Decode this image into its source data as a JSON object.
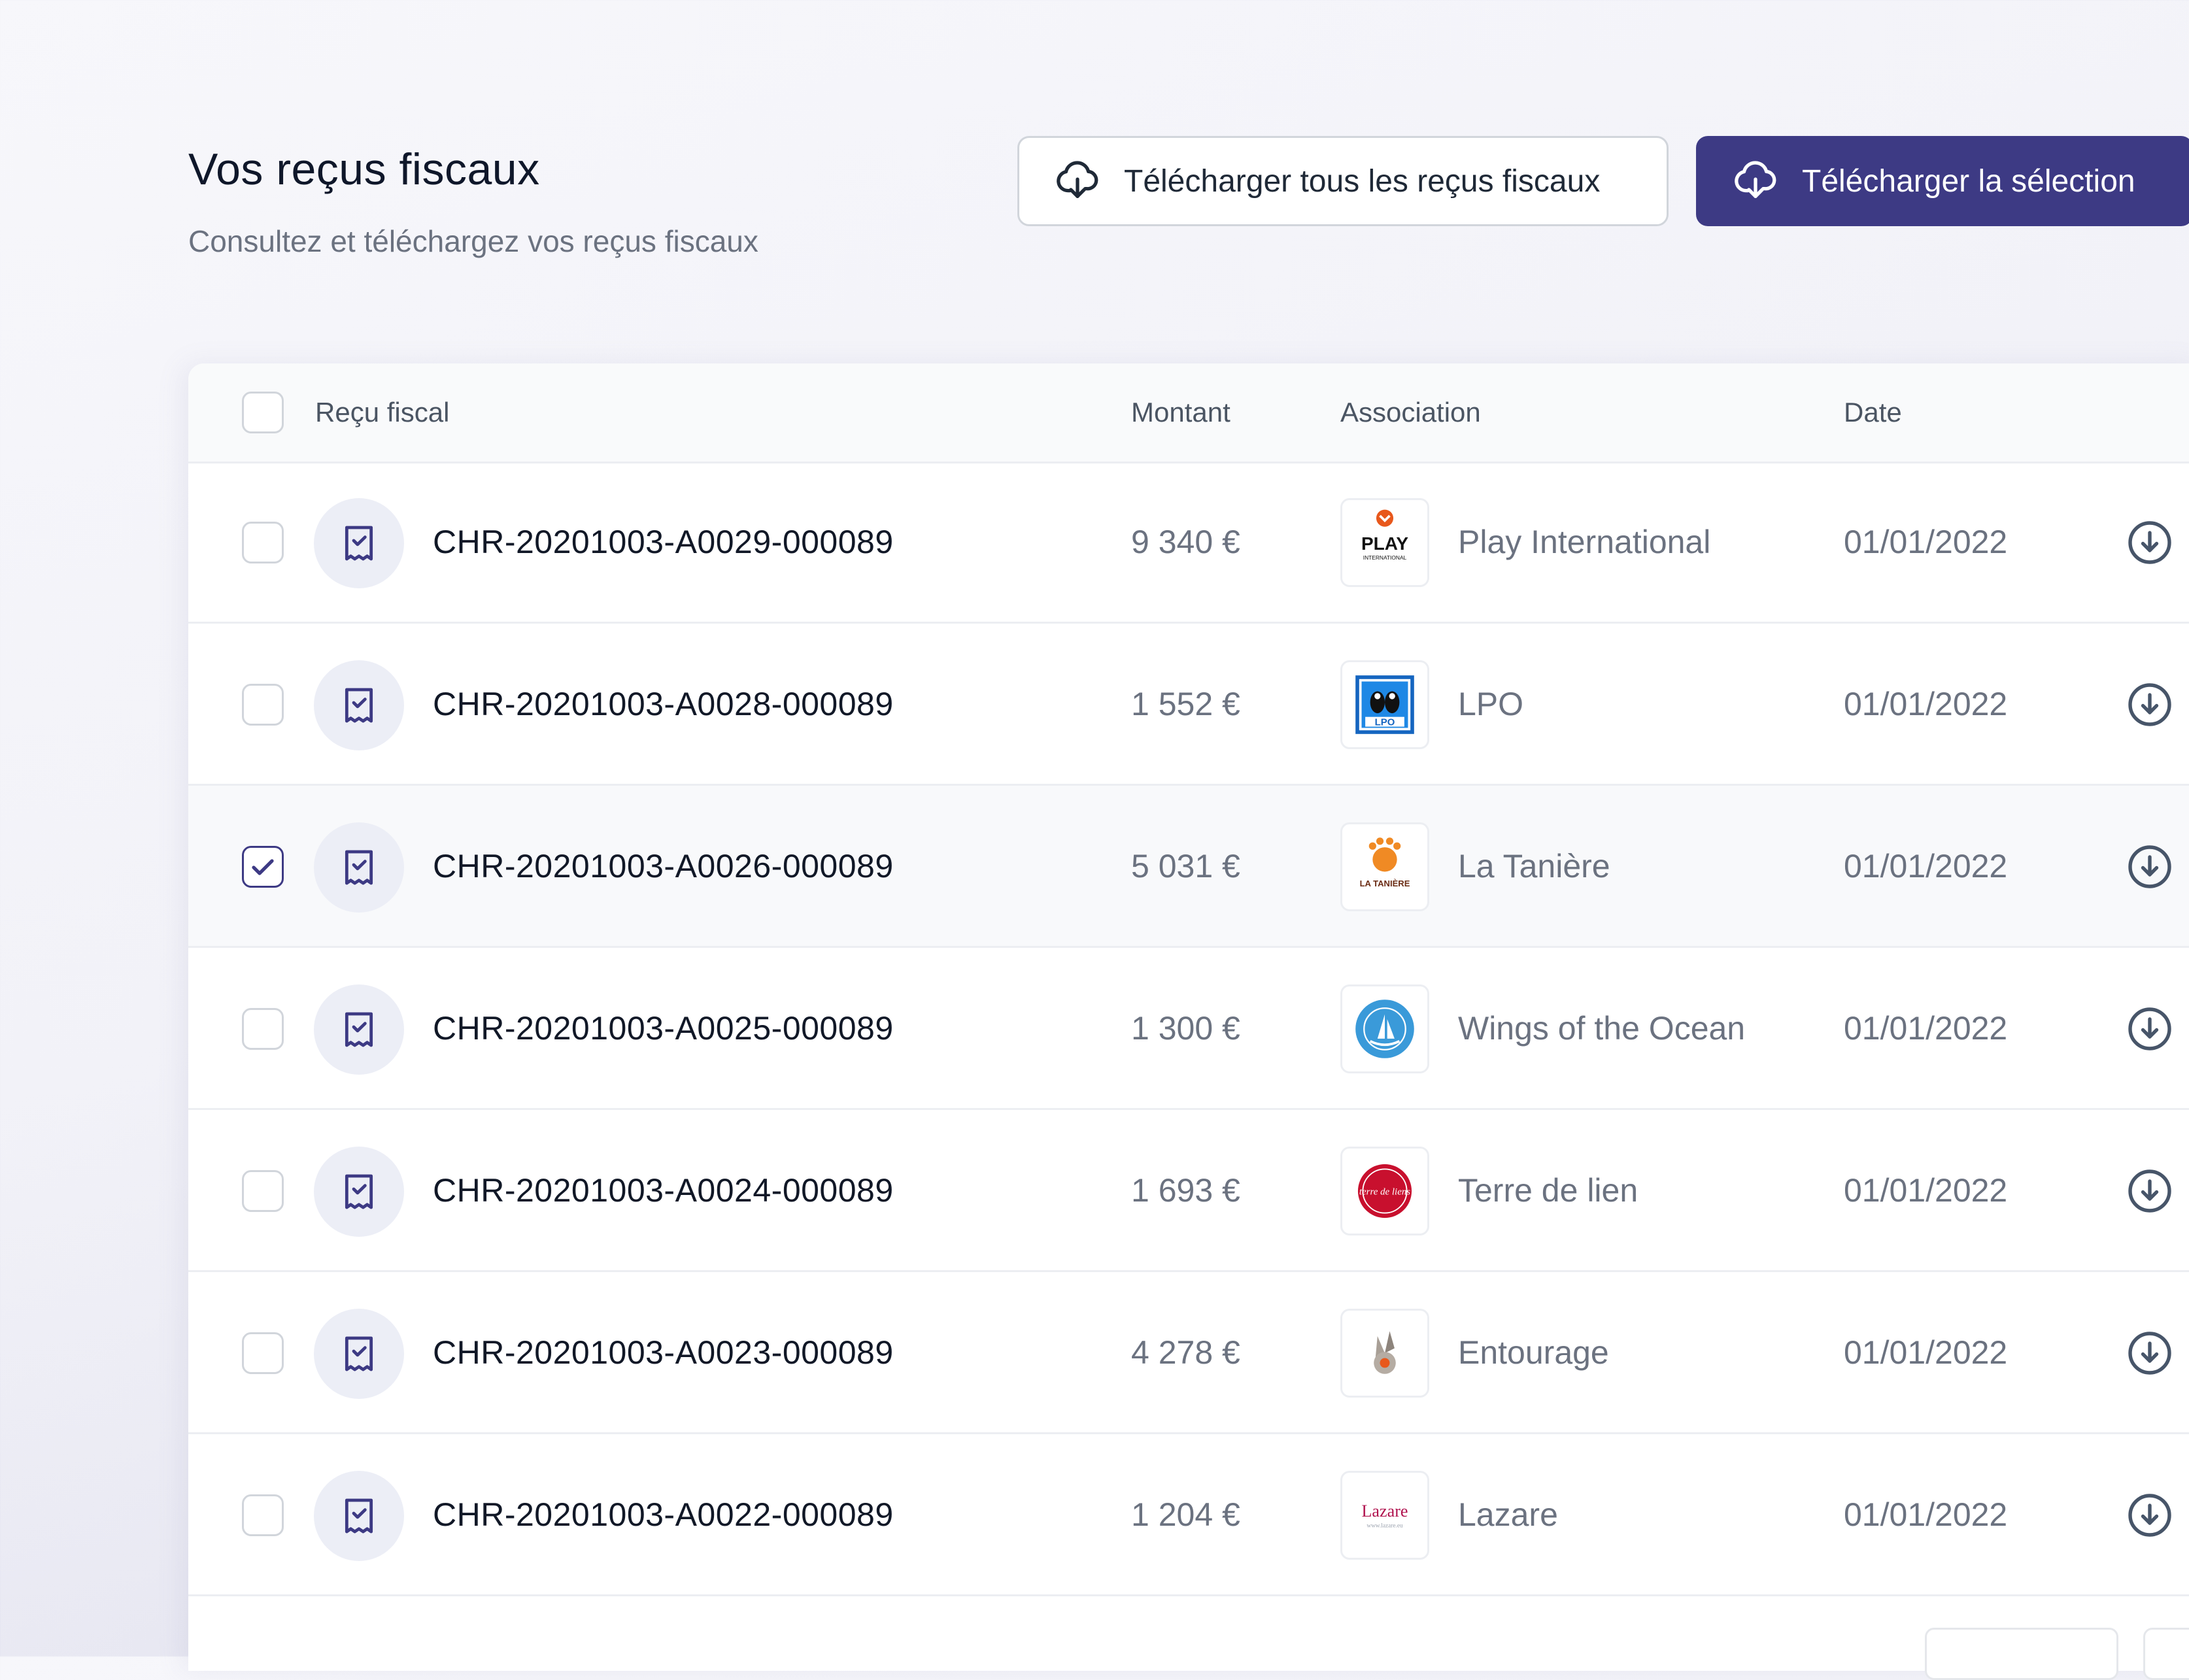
{
  "header": {
    "title": "Vos reçus fiscaux",
    "subtitle": "Consultez et téléchargez vos reçus fiscaux"
  },
  "actions": {
    "download_all_label": "Télécharger tous les reçus fiscaux",
    "download_selection_label": "Télécharger la sélection"
  },
  "table": {
    "columns": {
      "receipt": "Reçu fiscal",
      "amount": "Montant",
      "association": "Association",
      "date": "Date"
    },
    "rows": [
      {
        "id": "CHR-20201003-A0029-000089",
        "amount": "9 340 €",
        "association": "Play International",
        "date": "01/01/2022",
        "logo_icon": "play-international-logo",
        "selected": false
      },
      {
        "id": "CHR-20201003-A0028-000089",
        "amount": "1 552 €",
        "association": "LPO",
        "date": "01/01/2022",
        "logo_icon": "lpo-logo",
        "selected": false
      },
      {
        "id": "CHR-20201003-A0026-000089",
        "amount": "5 031 €",
        "association": "La Tanière",
        "date": "01/01/2022",
        "logo_icon": "la-taniere-logo",
        "selected": true
      },
      {
        "id": "CHR-20201003-A0025-000089",
        "amount": "1 300 €",
        "association": "Wings of the Ocean",
        "date": "01/01/2022",
        "logo_icon": "wings-of-the-ocean-logo",
        "selected": false
      },
      {
        "id": "CHR-20201003-A0024-000089",
        "amount": "1 693 €",
        "association": "Terre de lien",
        "date": "01/01/2022",
        "logo_icon": "terre-de-liens-logo",
        "selected": false
      },
      {
        "id": "CHR-20201003-A0023-000089",
        "amount": "4 278 €",
        "association": "Entourage",
        "date": "01/01/2022",
        "logo_icon": "entourage-logo",
        "selected": false
      },
      {
        "id": "CHR-20201003-A0022-000089",
        "amount": "1 204 €",
        "association": "Lazare",
        "date": "01/01/2022",
        "logo_icon": "lazare-logo",
        "selected": false
      }
    ]
  },
  "logo_texts": {
    "play": "PLAY",
    "play_sub": "INTERNATIONAL",
    "lpo": "LPO",
    "taniere": "LA TANIÈRE",
    "terre": "terre de liens",
    "lazare": "Lazare",
    "lazare_url": "www.lazare.eu"
  },
  "colors": {
    "primary": "#3d3a84",
    "text": "#111827",
    "muted": "#6b7280",
    "border": "#d1d5db"
  }
}
